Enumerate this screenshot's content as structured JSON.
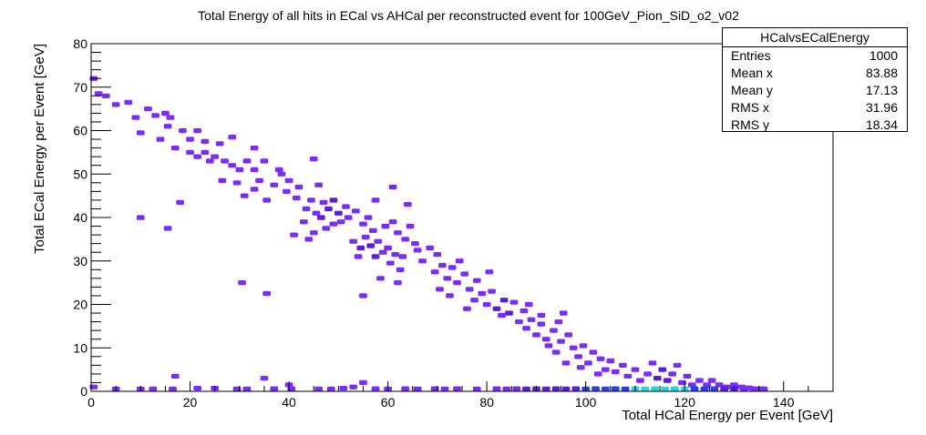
{
  "chart_data": {
    "type": "heatmap",
    "title": "Total Energy of all hits in ECal vs AHCal per reconstructed event for 100GeV_Pion_SiD_o2_v02",
    "xlabel": "Total HCal Energy per Event [GeV]",
    "ylabel": "Total ECal Energy per Event [GeV]",
    "xlim": [
      0,
      150
    ],
    "ylim": [
      0,
      80
    ],
    "x_ticks": [
      0,
      20,
      40,
      60,
      80,
      100,
      120,
      140
    ],
    "y_ticks": [
      0,
      10,
      20,
      30,
      40,
      50,
      60,
      70,
      80
    ],
    "x_tick_labels": [
      "0",
      "20",
      "40",
      "60",
      "80",
      "100",
      "120",
      "140"
    ],
    "y_tick_labels": [
      "0",
      "10",
      "20",
      "30",
      "40",
      "50",
      "60",
      "70",
      "80"
    ],
    "grid": false,
    "legend": "top-right",
    "colors": {
      "low": "#7b2cf5",
      "mid": "#5a1fd6",
      "high": "#2a3ff0",
      "peak": "#22d8e0"
    },
    "cells": [
      [
        0.5,
        72,
        1
      ],
      [
        1.5,
        68.5,
        1
      ],
      [
        3,
        68,
        1
      ],
      [
        5,
        66,
        1
      ],
      [
        7.5,
        66.5,
        1
      ],
      [
        10,
        59.5,
        1
      ],
      [
        9,
        63,
        1
      ],
      [
        13,
        63.5,
        1
      ],
      [
        11.5,
        65,
        1
      ],
      [
        15,
        64,
        1
      ],
      [
        16,
        63,
        1
      ],
      [
        15.5,
        61,
        1
      ],
      [
        14,
        58,
        1
      ],
      [
        17,
        56,
        1
      ],
      [
        18.5,
        60,
        1
      ],
      [
        20,
        58,
        1
      ],
      [
        21.5,
        60,
        1
      ],
      [
        23,
        57.5,
        1
      ],
      [
        20,
        55,
        1
      ],
      [
        21.5,
        54,
        1
      ],
      [
        23,
        55,
        1
      ],
      [
        24,
        53,
        1
      ],
      [
        25,
        54,
        1
      ],
      [
        26,
        57,
        1
      ],
      [
        27,
        53,
        1
      ],
      [
        26.5,
        48.5,
        1
      ],
      [
        28.5,
        52,
        1
      ],
      [
        30,
        51,
        1
      ],
      [
        29.5,
        48,
        1
      ],
      [
        31.5,
        53,
        1
      ],
      [
        33,
        51,
        1
      ],
      [
        35,
        53,
        1
      ],
      [
        34,
        48.5,
        1
      ],
      [
        33,
        46.5,
        1
      ],
      [
        31,
        45,
        1
      ],
      [
        35.5,
        44,
        1
      ],
      [
        37,
        47.5,
        1
      ],
      [
        38.5,
        50,
        1
      ],
      [
        39.5,
        46,
        1
      ],
      [
        40,
        48.5,
        1
      ],
      [
        41.5,
        44.5,
        1
      ],
      [
        42,
        47,
        1
      ],
      [
        45,
        53.5,
        1
      ],
      [
        46,
        47.5,
        1
      ],
      [
        44.5,
        44,
        1
      ],
      [
        43.5,
        42,
        1
      ],
      [
        45.5,
        41,
        1
      ],
      [
        47,
        43.5,
        1
      ],
      [
        48,
        42,
        2
      ],
      [
        46.5,
        40,
        2
      ],
      [
        49,
        44,
        2
      ],
      [
        50,
        41,
        2
      ],
      [
        51.5,
        42.5,
        1
      ],
      [
        50.5,
        39,
        1
      ],
      [
        52,
        40,
        1
      ],
      [
        53.5,
        41.5,
        1
      ],
      [
        49,
        38.5,
        1
      ],
      [
        47.5,
        37.5,
        1
      ],
      [
        43,
        39,
        1
      ],
      [
        41,
        36,
        1
      ],
      [
        44,
        35,
        1
      ],
      [
        45,
        36.5,
        1
      ],
      [
        55,
        38.5,
        1
      ],
      [
        56,
        40,
        1
      ],
      [
        57,
        37,
        1
      ],
      [
        55.5,
        35.5,
        1
      ],
      [
        53,
        34.5,
        1
      ],
      [
        54.5,
        33,
        2
      ],
      [
        56.5,
        33.5,
        2
      ],
      [
        58,
        34.5,
        1
      ],
      [
        59,
        32,
        1
      ],
      [
        57.5,
        31,
        2
      ],
      [
        60,
        33,
        1
      ],
      [
        61.5,
        31.5,
        1
      ],
      [
        60.5,
        29.5,
        1
      ],
      [
        59.5,
        38,
        1
      ],
      [
        61,
        39,
        1
      ],
      [
        62,
        36.5,
        1
      ],
      [
        63.5,
        35,
        1
      ],
      [
        64.5,
        38,
        1
      ],
      [
        65.5,
        34,
        1
      ],
      [
        63,
        31,
        1
      ],
      [
        62.5,
        28,
        1
      ],
      [
        66,
        32.5,
        1
      ],
      [
        67,
        30,
        1
      ],
      [
        68.5,
        33,
        1
      ],
      [
        70,
        31.5,
        1
      ],
      [
        71,
        29,
        1
      ],
      [
        69.5,
        27.5,
        1
      ],
      [
        72,
        26,
        1
      ],
      [
        73,
        28.5,
        1
      ],
      [
        74.5,
        30,
        1
      ],
      [
        75.5,
        27,
        1
      ],
      [
        74,
        25,
        1
      ],
      [
        76.5,
        23.5,
        1
      ],
      [
        72.5,
        22,
        1
      ],
      [
        70.5,
        23.5,
        1
      ],
      [
        78,
        25.5,
        1
      ],
      [
        79,
        22.5,
        1
      ],
      [
        77.5,
        21,
        1
      ],
      [
        80,
        20,
        1
      ],
      [
        81,
        23,
        1
      ],
      [
        82,
        19,
        2
      ],
      [
        83.5,
        21,
        2
      ],
      [
        84.5,
        18,
        2
      ],
      [
        85.5,
        20.5,
        1
      ],
      [
        83,
        17.5,
        1
      ],
      [
        86.5,
        16,
        1
      ],
      [
        87.5,
        18.5,
        1
      ],
      [
        88.5,
        20,
        1
      ],
      [
        89,
        16.5,
        1
      ],
      [
        88,
        14.5,
        1
      ],
      [
        90,
        13,
        1
      ],
      [
        91,
        15.5,
        1
      ],
      [
        92,
        12,
        1
      ],
      [
        93.5,
        14,
        1
      ],
      [
        94.5,
        16,
        1
      ],
      [
        95,
        11.5,
        1
      ],
      [
        96.5,
        13,
        1
      ],
      [
        97.5,
        10,
        1
      ],
      [
        94,
        9,
        1
      ],
      [
        92.5,
        10.5,
        1
      ],
      [
        98.5,
        8,
        1
      ],
      [
        99.5,
        10.5,
        1
      ],
      [
        100.5,
        6.5,
        1
      ],
      [
        101.5,
        9,
        1
      ],
      [
        103,
        7.5,
        1
      ],
      [
        104,
        5,
        1
      ],
      [
        102.5,
        4,
        1
      ],
      [
        99,
        5.5,
        1
      ],
      [
        96,
        6.5,
        1
      ],
      [
        105,
        7,
        1
      ],
      [
        106,
        4.5,
        1
      ],
      [
        107.5,
        6,
        1
      ],
      [
        108.5,
        3.5,
        1
      ],
      [
        110,
        5,
        1
      ],
      [
        111,
        2.5,
        1
      ],
      [
        112.5,
        4,
        1
      ],
      [
        113.5,
        6.5,
        1
      ],
      [
        114.5,
        3,
        2
      ],
      [
        115.5,
        5,
        2
      ],
      [
        116.5,
        2.5,
        2
      ],
      [
        117.5,
        4,
        1
      ],
      [
        118.5,
        6,
        1
      ],
      [
        119.5,
        2,
        1
      ],
      [
        120.5,
        3.5,
        1
      ],
      [
        121.5,
        1.5,
        1
      ],
      [
        123,
        2.5,
        1
      ],
      [
        124.5,
        1.5,
        1
      ],
      [
        125.5,
        2.5,
        1
      ],
      [
        127,
        1.5,
        1
      ],
      [
        128.5,
        1,
        1
      ],
      [
        130,
        1.5,
        1
      ],
      [
        131.5,
        1,
        1
      ],
      [
        133,
        0.8,
        1
      ],
      [
        135.5,
        0.6,
        1
      ],
      [
        91,
        17.5,
        1
      ],
      [
        95.5,
        18,
        1
      ],
      [
        76,
        19,
        1
      ],
      [
        80.5,
        27.5,
        1
      ],
      [
        64,
        43,
        1
      ],
      [
        57.5,
        44,
        1
      ],
      [
        61,
        47,
        1
      ],
      [
        38,
        51,
        1
      ],
      [
        33,
        56,
        1
      ],
      [
        28.5,
        58.5,
        1
      ],
      [
        18,
        43.5,
        1
      ],
      [
        10,
        40,
        1
      ],
      [
        15.5,
        37.5,
        1
      ],
      [
        30.5,
        25,
        1
      ],
      [
        35.5,
        22.5,
        1
      ],
      [
        55,
        22,
        1
      ],
      [
        54,
        31,
        1
      ],
      [
        62,
        25,
        1
      ],
      [
        58.5,
        26,
        1
      ],
      [
        35,
        3,
        1
      ],
      [
        40,
        1.5,
        1
      ],
      [
        17,
        3.5,
        1
      ],
      [
        55,
        2,
        1
      ],
      [
        53,
        1,
        1
      ],
      [
        46,
        0.5,
        1
      ],
      [
        21.5,
        0.7,
        1
      ],
      [
        25,
        0.7,
        1
      ],
      [
        0.5,
        1,
        1
      ],
      [
        5,
        0.4,
        1
      ],
      [
        10,
        0.5,
        1
      ],
      [
        12.5,
        0.3,
        1
      ],
      [
        16.5,
        0.4,
        1
      ],
      [
        29.5,
        0.5,
        1
      ],
      [
        31.5,
        0.5,
        1
      ],
      [
        37,
        0.6,
        1
      ],
      [
        40.5,
        0.6,
        1
      ],
      [
        48.5,
        0.5,
        1
      ],
      [
        51,
        0.7,
        1
      ],
      [
        57.5,
        0.6,
        1
      ],
      [
        60,
        0.5,
        1
      ],
      [
        63.5,
        0.6,
        1
      ],
      [
        66,
        0.5,
        1
      ],
      [
        69.5,
        0.6,
        1
      ],
      [
        71.5,
        0.5,
        1
      ],
      [
        74,
        0.6,
        1
      ],
      [
        78,
        0.5,
        1
      ],
      [
        82,
        0.6,
        1
      ],
      [
        84,
        0.5,
        1
      ],
      [
        86,
        0.6,
        1
      ],
      [
        88,
        0.5,
        2
      ],
      [
        90,
        0.6,
        2
      ],
      [
        92,
        0.5,
        2
      ],
      [
        94,
        0.6,
        2
      ],
      [
        96,
        0.5,
        2
      ],
      [
        98,
        0.6,
        2
      ],
      [
        100,
        0.5,
        3
      ],
      [
        102,
        0.6,
        3
      ],
      [
        104,
        0.5,
        3
      ],
      [
        106,
        0.6,
        3
      ],
      [
        108,
        0.5,
        3
      ],
      [
        110,
        0.6,
        4
      ],
      [
        112,
        0.5,
        4
      ],
      [
        114,
        0.6,
        4
      ],
      [
        116,
        0.5,
        4
      ],
      [
        118,
        0.6,
        4
      ],
      [
        120,
        0.5,
        4
      ],
      [
        122,
        0.6,
        3
      ],
      [
        124,
        0.5,
        3
      ],
      [
        126,
        0.6,
        3
      ],
      [
        128,
        0.5,
        2
      ],
      [
        130,
        0.6,
        2
      ],
      [
        132,
        0.5,
        1
      ],
      [
        134,
        0.6,
        1
      ],
      [
        136,
        0.5,
        1
      ]
    ],
    "cell_value_scale": "relative intensity 1 (low) to 4 (peak)"
  },
  "stats": {
    "title": "HCalvsECalEnergy",
    "rows": [
      {
        "label": "Entries",
        "value": "1000"
      },
      {
        "label": "Mean x",
        "value": "83.88"
      },
      {
        "label": "Mean y",
        "value": "17.13"
      },
      {
        "label": "RMS x",
        "value": "31.96"
      },
      {
        "label": "RMS y",
        "value": "18.34"
      }
    ]
  }
}
